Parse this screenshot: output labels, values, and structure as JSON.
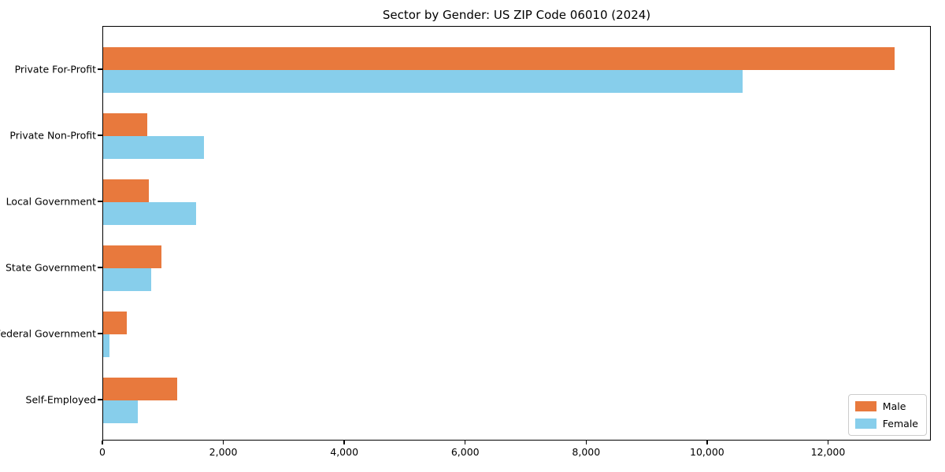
{
  "title": "Sector by Gender: US ZIP Code 06010 (2024)",
  "colors": {
    "male": "#e8793d",
    "female": "#87ceeb",
    "axis": "#000000",
    "background": "#ffffff",
    "legend_border": "#cccccc"
  },
  "chart_data": {
    "type": "bar",
    "orientation": "horizontal",
    "title": "Sector by Gender: US ZIP Code 06010 (2024)",
    "xlabel": "",
    "ylabel": "",
    "categories": [
      "Private For-Profit",
      "Private Non-Profit",
      "Local Government",
      "State Government",
      "Federal Government",
      "Self-Employed"
    ],
    "series": [
      {
        "name": "Male",
        "color": "#e8793d",
        "values": [
          13090,
          730,
          760,
          970,
          395,
          1230
        ]
      },
      {
        "name": "Female",
        "color": "#87ceeb",
        "values": [
          10575,
          1670,
          1535,
          795,
          100,
          570
        ]
      }
    ],
    "xlim": [
      0,
      13700
    ],
    "xticks": [
      0,
      2000,
      4000,
      6000,
      8000,
      10000,
      12000
    ],
    "xtick_labels": [
      "0",
      "2,000",
      "4,000",
      "6,000",
      "8,000",
      "10,000",
      "12,000"
    ],
    "grid": false,
    "legend_position": "lower right"
  },
  "legend": {
    "items": [
      {
        "label": "Male",
        "color": "#e8793d"
      },
      {
        "label": "Female",
        "color": "#87ceeb"
      }
    ]
  }
}
